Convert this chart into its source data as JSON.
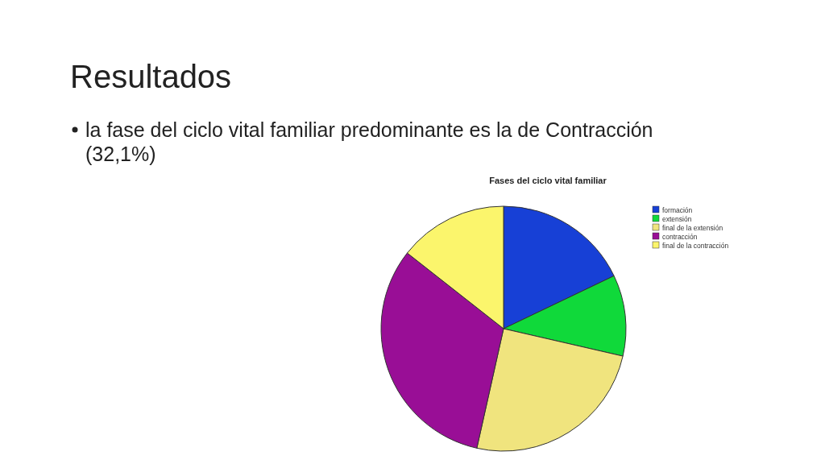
{
  "chart_data": {
    "type": "pie",
    "title": "Fases del ciclo vital familiar",
    "annotations": [
      "Resultados",
      "la fase del ciclo vital familiar predominante es la de Contracción (32,1%)"
    ],
    "categories": [
      "formación",
      "extensión",
      "final de la extensión",
      "contracción",
      "final de la contracción"
    ],
    "values": [
      17.9,
      10.7,
      24.9,
      32.1,
      14.4
    ],
    "colors": [
      "#1740d6",
      "#10d93a",
      "#f0e47e",
      "#990e96",
      "#fbf56c"
    ],
    "legend": "top right"
  }
}
